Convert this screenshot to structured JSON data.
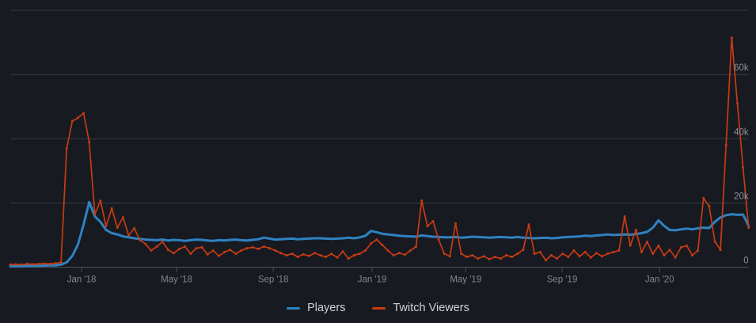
{
  "page": {
    "background": "#171a21"
  },
  "colors": {
    "players_line": "#2e82c2",
    "twitch_line": "#c83b12",
    "gridline": "#363c45",
    "axis_line": "#4c535c",
    "y_label": "#8b9299",
    "x_label": "#7f878f",
    "legend_text": "#ced3d8"
  },
  "legend": {
    "items": [
      {
        "label": "Players",
        "color": "#2e82c2"
      },
      {
        "label": "Twitch Viewers",
        "color": "#c83b12"
      }
    ]
  },
  "chart_data": {
    "type": "line",
    "title": "",
    "xlabel": "",
    "ylabel": "",
    "x_unit": "week",
    "grid": true,
    "legend_position": "bottom-center",
    "y_axis": {
      "min": 0,
      "max": 80000,
      "ticks": [
        0,
        20000,
        40000,
        60000,
        80000
      ],
      "tick_labels": [
        "0",
        "20k",
        "40k",
        "60k",
        ""
      ],
      "labels_side": "right"
    },
    "x_axis": {
      "tick_labels": [
        "Jan '18",
        "May '18",
        "Sep '18",
        "Jan '19",
        "May '19",
        "Sep '19",
        "Jan '20"
      ],
      "tick_week_index": [
        12.65,
        29.5,
        46.65,
        64.2,
        80.8,
        97.9,
        115.2
      ]
    },
    "series": [
      {
        "name": "Players",
        "color": "#2e82c2",
        "stroke_width": 3,
        "markers": false,
        "values": [
          300,
          300,
          350,
          400,
          400,
          450,
          500,
          550,
          600,
          800,
          1500,
          3500,
          7000,
          13300,
          20300,
          15800,
          14100,
          11600,
          10600,
          10200,
          9600,
          9300,
          9000,
          8800,
          8600,
          8500,
          8400,
          8600,
          8300,
          8500,
          8400,
          8200,
          8400,
          8600,
          8500,
          8300,
          8200,
          8400,
          8300,
          8500,
          8600,
          8400,
          8300,
          8500,
          8700,
          9200,
          8900,
          8600,
          8700,
          8800,
          8900,
          8700,
          8800,
          8900,
          9000,
          9000,
          8900,
          8800,
          8900,
          9000,
          9200,
          9000,
          9300,
          9800,
          11300,
          10900,
          10400,
          10200,
          10000,
          9800,
          9700,
          9600,
          9500,
          9900,
          9700,
          9500,
          9400,
          9300,
          9300,
          9400,
          9200,
          9300,
          9500,
          9400,
          9300,
          9200,
          9300,
          9400,
          9300,
          9200,
          9400,
          9200,
          9100,
          9000,
          9100,
          9200,
          9000,
          9100,
          9300,
          9400,
          9500,
          9600,
          9800,
          9700,
          9900,
          10000,
          10200,
          10000,
          10100,
          10200,
          10100,
          10300,
          10600,
          11000,
          12300,
          14600,
          12900,
          11600,
          11500,
          11800,
          12000,
          11800,
          12100,
          12300,
          12200,
          14100,
          15500,
          16200,
          16500,
          16300,
          16400,
          12900
        ]
      },
      {
        "name": "Twitch Viewers",
        "color": "#c83b12",
        "stroke_width": 1.7,
        "markers": true,
        "values": [
          800,
          900,
          800,
          1000,
          900,
          1000,
          1100,
          1000,
          1200,
          1500,
          37000,
          45500,
          46500,
          48000,
          39000,
          16500,
          20700,
          12800,
          18300,
          12300,
          15500,
          9900,
          12100,
          8400,
          7200,
          5200,
          6400,
          7900,
          5400,
          4400,
          5700,
          6400,
          4200,
          5900,
          6200,
          4000,
          5200,
          3500,
          4700,
          5400,
          4200,
          5200,
          5900,
          6200,
          5700,
          6400,
          5900,
          5200,
          4400,
          3700,
          4200,
          3200,
          4000,
          3500,
          4400,
          3700,
          3200,
          4200,
          3000,
          4900,
          2700,
          3700,
          4200,
          5200,
          7400,
          8600,
          6900,
          5200,
          3700,
          4400,
          3900,
          5200,
          6400,
          20800,
          12800,
          14300,
          8600,
          4200,
          3400,
          13600,
          4200,
          3200,
          3700,
          2700,
          3400,
          2500,
          3200,
          2700,
          3700,
          3200,
          4200,
          5400,
          13300,
          4200,
          4700,
          2200,
          3700,
          2700,
          4200,
          3200,
          5200,
          3400,
          4700,
          3000,
          4400,
          3400,
          4200,
          4700,
          5200,
          15800,
          6700,
          11600,
          4700,
          7900,
          4200,
          6700,
          3700,
          5400,
          3000,
          6200,
          6700,
          3700,
          5200,
          21500,
          19000,
          8000,
          5400,
          38000,
          71500,
          51000,
          31000,
          12300
        ]
      }
    ]
  }
}
